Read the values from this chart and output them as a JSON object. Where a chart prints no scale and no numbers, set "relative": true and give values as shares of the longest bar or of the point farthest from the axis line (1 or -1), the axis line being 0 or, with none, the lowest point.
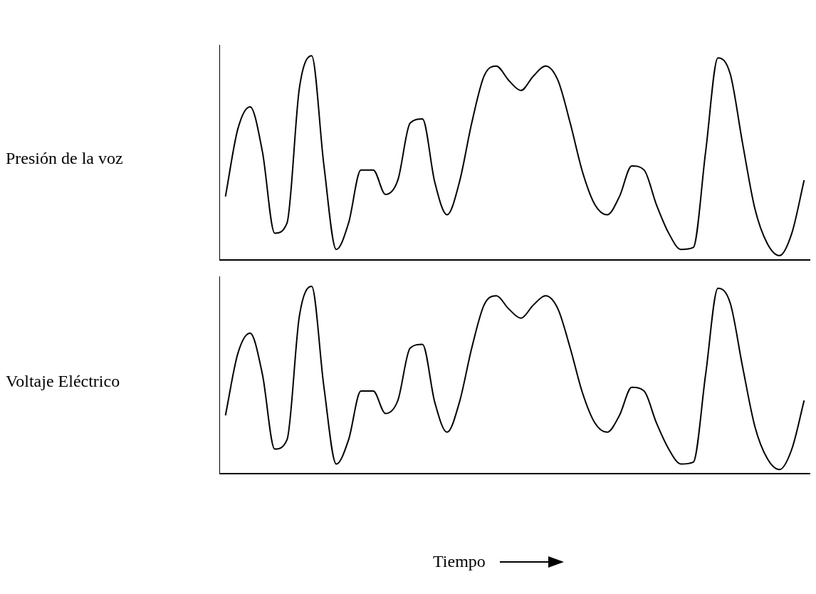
{
  "chart_data": [
    {
      "type": "line",
      "relative": true,
      "ylabel": "Presión de la voz",
      "color": "#000000",
      "marker": "none",
      "categories": [
        null,
        null,
        null,
        null,
        null,
        null,
        null,
        null,
        null,
        null,
        null,
        null,
        null,
        null,
        null,
        null,
        null,
        null,
        null,
        null,
        null,
        null,
        null,
        null,
        null,
        null,
        null,
        null,
        null,
        null,
        null,
        null,
        null,
        null,
        null,
        null,
        null,
        null,
        null,
        null,
        null,
        null,
        null,
        null,
        null,
        null,
        null,
        null
      ],
      "values": [
        0.31,
        0.64,
        0.75,
        0.53,
        0.13,
        0.18,
        0.84,
        1,
        0.46,
        0.05,
        0.18,
        0.44,
        0.44,
        0.32,
        0.39,
        0.67,
        0.69,
        0.38,
        0.22,
        0.38,
        0.67,
        0.9,
        0.95,
        0.88,
        0.83,
        0.9,
        0.95,
        0.88,
        0.67,
        0.43,
        0.27,
        0.22,
        0.31,
        0.46,
        0.44,
        0.27,
        0.13,
        0.05,
        0.06,
        0.53,
        0.99,
        0.91,
        0.57,
        0.25,
        0.08,
        0.02,
        0.13,
        0.39
      ]
    },
    {
      "type": "line",
      "relative": true,
      "ylabel": "Voltaje Eléctrico",
      "xlabel": "Tiempo",
      "color": "#000000",
      "marker": "none",
      "categories": [
        null,
        null,
        null,
        null,
        null,
        null,
        null,
        null,
        null,
        null,
        null,
        null,
        null,
        null,
        null,
        null,
        null,
        null,
        null,
        null,
        null,
        null,
        null,
        null,
        null,
        null,
        null,
        null,
        null,
        null,
        null,
        null,
        null,
        null,
        null,
        null,
        null,
        null,
        null,
        null,
        null,
        null,
        null,
        null,
        null,
        null,
        null,
        null
      ],
      "values": [
        0.31,
        0.64,
        0.75,
        0.53,
        0.13,
        0.18,
        0.84,
        1,
        0.46,
        0.05,
        0.18,
        0.44,
        0.44,
        0.32,
        0.39,
        0.67,
        0.69,
        0.38,
        0.22,
        0.38,
        0.67,
        0.9,
        0.95,
        0.88,
        0.83,
        0.9,
        0.95,
        0.88,
        0.67,
        0.43,
        0.27,
        0.22,
        0.31,
        0.46,
        0.44,
        0.27,
        0.13,
        0.05,
        0.06,
        0.53,
        0.99,
        0.91,
        0.57,
        0.25,
        0.08,
        0.02,
        0.13,
        0.39
      ]
    }
  ]
}
